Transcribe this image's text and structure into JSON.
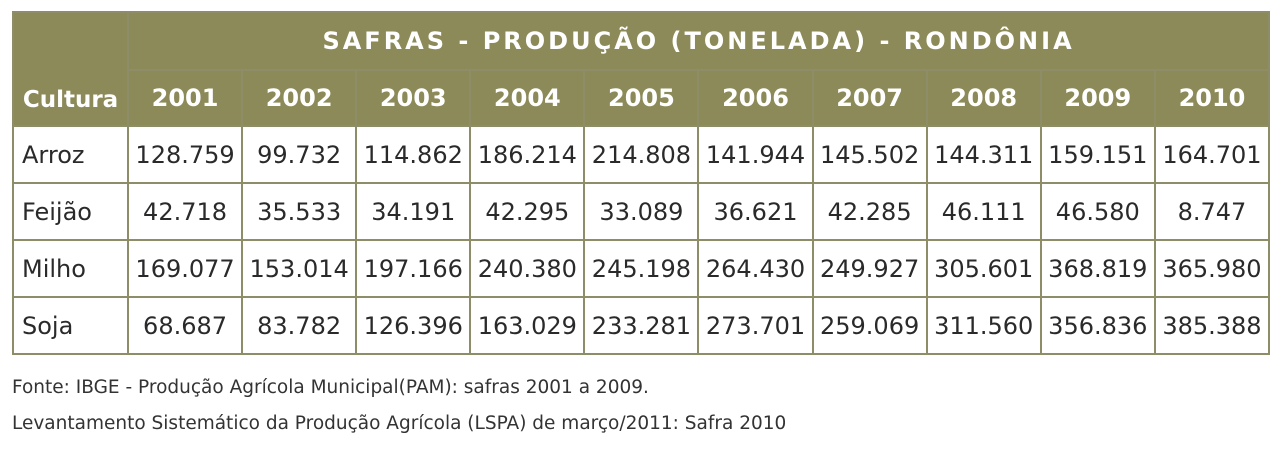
{
  "table": {
    "title": "SAFRAS - PRODUÇÃO (TONELADA) - RONDÔNIA",
    "header": [
      "Cultura",
      "2001",
      "2002",
      "2003",
      "2004",
      "2005",
      "2006",
      "2007",
      "2008",
      "2009",
      "2010"
    ],
    "rows": [
      [
        "Arroz",
        "128.759",
        "99.732",
        "114.862",
        "186.214",
        "214.808",
        "141.944",
        "145.502",
        "144.311",
        "159.151",
        "164.701"
      ],
      [
        "Feijão",
        "42.718",
        "35.533",
        "34.191",
        "42.295",
        "33.089",
        "36.621",
        "42.285",
        "46.111",
        "46.580",
        "8.747"
      ],
      [
        "Milho",
        "169.077",
        "153.014",
        "197.166",
        "240.380",
        "245.198",
        "264.430",
        "249.927",
        "305.601",
        "368.819",
        "365.980"
      ],
      [
        "Soja",
        "68.687",
        "83.782",
        "126.396",
        "163.029",
        "233.281",
        "273.701",
        "259.069",
        "311.560",
        "356.836",
        "385.388"
      ]
    ]
  },
  "notes": [
    "Fonte: IBGE - Produção Agrícola Municipal(PAM): safras 2001 a 2009.",
    "Levantamento Sistemático da Produção Agrícola (LSPA) de março/2011: Safra 2010"
  ]
}
